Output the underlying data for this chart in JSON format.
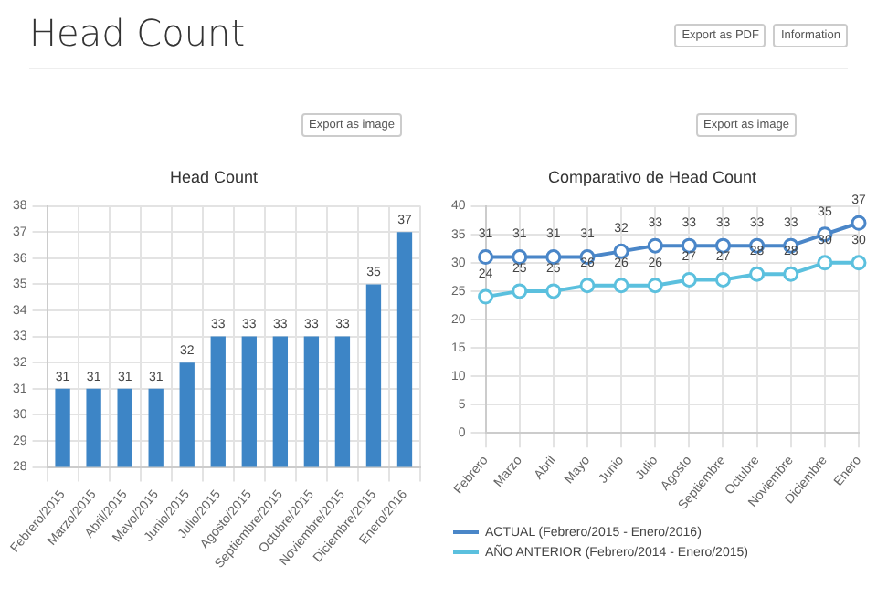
{
  "chart_data": [
    {
      "type": "other",
      "title": "Head Count",
      "annotations": [
        "Export as PDF",
        "Information"
      ]
    },
    {
      "type": "bar",
      "title": "Head Count",
      "annotations": [
        "Export as image"
      ],
      "categories": [
        "Febrero/2015",
        "Marzo/2015",
        "Abril/2015",
        "Mayo/2015",
        "Junio/2015",
        "Julio/2015",
        "Agosto/2015",
        "Septiembre/2015",
        "Octubre/2015",
        "Noviembre/2015",
        "Diciembre/2015",
        "Enero/2016"
      ],
      "values": [
        31,
        31,
        31,
        31,
        32,
        33,
        33,
        33,
        33,
        33,
        35,
        37
      ],
      "color": "#3d85c6",
      "ylim": [
        28,
        38
      ],
      "yticks": [
        28,
        29,
        30,
        31,
        32,
        33,
        34,
        35,
        36,
        37,
        38
      ],
      "grid": true,
      "data_labels": true
    },
    {
      "type": "line",
      "title": "Comparativo de Head Count",
      "annotations": [
        "Export as image"
      ],
      "categories": [
        "Febrero",
        "Marzo",
        "Abril",
        "Mayo",
        "Junio",
        "Julio",
        "Agosto",
        "Septiembre",
        "Octubre",
        "Noviembre",
        "Diciembre",
        "Enero"
      ],
      "series": [
        {
          "name": "ACTUAL (Febrero/2015 - Enero/2016)",
          "color": "#4a86c8",
          "values": [
            31,
            31,
            31,
            31,
            32,
            33,
            33,
            33,
            33,
            33,
            35,
            37
          ]
        },
        {
          "name": "AÑO ANTERIOR (Febrero/2014 - Enero/2015)",
          "color": "#5bc0de",
          "values": [
            24,
            25,
            25,
            26,
            26,
            26,
            27,
            27,
            28,
            28,
            30,
            30
          ]
        }
      ],
      "ylim": [
        0,
        40
      ],
      "yticks": [
        0,
        5,
        10,
        15,
        20,
        25,
        30,
        35,
        40
      ],
      "grid": true,
      "legend": "bottom",
      "marker": "circle",
      "line_style": "solid",
      "data_labels": true
    }
  ]
}
